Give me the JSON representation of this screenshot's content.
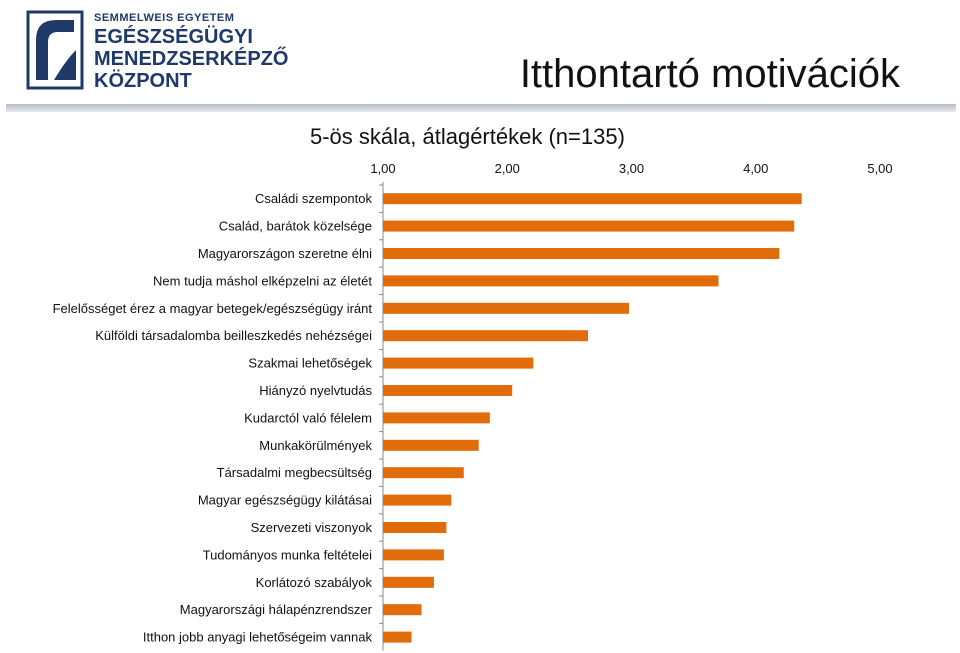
{
  "header": {
    "logo_lines": [
      "SEMMELWEIS EGYETEM",
      "EGÉSZSÉGÜGYI",
      "MENEDZSERKÉPZŐ",
      "KÖZPONT"
    ],
    "title": "Itthontartó motivációk"
  },
  "colors": {
    "bar": "#E36C0A",
    "logo": "#1f3a68",
    "rule": "#c8ccd2"
  },
  "chart_data": {
    "type": "bar",
    "orientation": "horizontal",
    "title": "5-ös skála, átlagértékek (n=135)",
    "xlabel": "",
    "ylabel": "",
    "xlim": [
      1,
      5
    ],
    "x_ticks": [
      "1,00",
      "2,00",
      "3,00",
      "4,00",
      "5,00"
    ],
    "x_axis_position": "top",
    "grid": false,
    "categories": [
      "Családi szempontok",
      "Család, barátok közelsége",
      "Magyarországon szeretne élni",
      "Nem tudja máshol elképzelni az életét",
      "Felelősséget érez a magyar betegek/egészségügy iránt",
      "Külföldi társadalomba beilleszkedés nehézségei",
      "Szakmai lehetőségek",
      "Hiányzó nyelvtudás",
      "Kudarctól való félelem",
      "Munkakörülmények",
      "Társadalmi megbecsültség",
      "Magyar egészségügy kilátásai",
      "Szervezeti viszonyok",
      "Tudományos munka feltételei",
      "Korlátozó szabályok",
      "Magyarországi hálapénzrendszer",
      "Itthon jobb anyagi lehetőségeim vannak"
    ],
    "values": [
      4.37,
      4.31,
      4.19,
      3.7,
      2.98,
      2.65,
      2.21,
      2.04,
      1.86,
      1.77,
      1.65,
      1.55,
      1.51,
      1.49,
      1.41,
      1.31,
      1.23
    ]
  }
}
